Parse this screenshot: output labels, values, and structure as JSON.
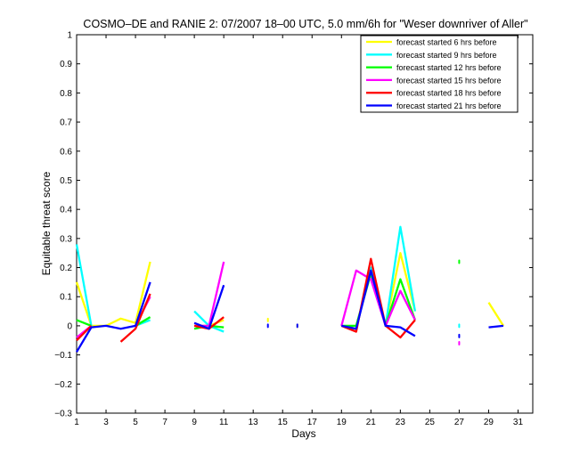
{
  "chart_data": {
    "type": "line",
    "title": "COSMO–DE and RANIE 2: 07/2007 18–00 UTC, 5.0 mm/6h for \"Weser downriver of Aller\"",
    "xlabel": "Days",
    "ylabel": "Equitable threat score",
    "xlim": [
      1,
      32
    ],
    "ylim": [
      -0.3,
      1
    ],
    "xticks": [
      1,
      3,
      5,
      7,
      9,
      11,
      13,
      15,
      17,
      19,
      21,
      23,
      25,
      27,
      29,
      31
    ],
    "yticks": [
      -0.3,
      -0.2,
      -0.1,
      0,
      0.1,
      0.2,
      0.3,
      0.4,
      0.5,
      0.6,
      0.7,
      0.8,
      0.9,
      1
    ],
    "ytick_labels": [
      "−0.3",
      "−0.2",
      "−0.1",
      "0",
      "0.1",
      "0.2",
      "0.3",
      "0.4",
      "0.5",
      "0.6",
      "0.7",
      "0.8",
      "0.9",
      "1"
    ],
    "grid": false,
    "legend_position": "top-right",
    "series": [
      {
        "name": "forecast started 6 hrs before",
        "color": "#ffff00",
        "segments": [
          [
            [
              1,
              0.15
            ],
            [
              2,
              0.0
            ],
            [
              3,
              0.0
            ],
            [
              4,
              0.025
            ],
            [
              5,
              0.01
            ],
            [
              6,
              0.22
            ]
          ],
          [
            [
              9,
              0.0
            ],
            [
              10,
              0.0
            ],
            [
              11,
              0.02
            ]
          ],
          [
            [
              14,
              0.02
            ]
          ],
          [
            [
              16,
              0.0
            ]
          ],
          [
            [
              19,
              0.0
            ],
            [
              20,
              -0.01
            ],
            [
              21,
              0.2
            ],
            [
              22,
              0.0
            ],
            [
              23,
              0.25
            ],
            [
              24,
              0.05
            ]
          ],
          [
            [
              29,
              0.08
            ],
            [
              30,
              0.0
            ]
          ]
        ]
      },
      {
        "name": "forecast started 9 hrs before",
        "color": "#00ffff",
        "segments": [
          [
            [
              1,
              0.28
            ],
            [
              2,
              0.0
            ]
          ],
          [
            [
              5,
              0.0
            ],
            [
              6,
              0.02
            ]
          ],
          [
            [
              9,
              0.05
            ],
            [
              10,
              0.0
            ],
            [
              11,
              -0.02
            ]
          ],
          [
            [
              19,
              0.0
            ],
            [
              20,
              -0.01
            ],
            [
              21,
              0.2
            ],
            [
              22,
              0.0
            ],
            [
              23,
              0.34
            ],
            [
              24,
              0.05
            ]
          ],
          [
            [
              27,
              0.0
            ]
          ]
        ]
      },
      {
        "name": "forecast started 12 hrs before",
        "color": "#00ff00",
        "segments": [
          [
            [
              1,
              0.02
            ],
            [
              2,
              0.0
            ]
          ],
          [
            [
              5,
              0.0
            ],
            [
              6,
              0.03
            ]
          ],
          [
            [
              9,
              -0.01
            ],
            [
              10,
              0.0
            ],
            [
              11,
              -0.005
            ]
          ],
          [
            [
              19,
              0.0
            ],
            [
              20,
              0.0
            ],
            [
              21,
              0.18
            ],
            [
              22,
              0.0
            ],
            [
              23,
              0.16
            ],
            [
              24,
              0.02
            ]
          ],
          [
            [
              27,
              0.22
            ]
          ]
        ]
      },
      {
        "name": "forecast started 15 hrs before",
        "color": "#ff00ff",
        "segments": [
          [
            [
              1,
              -0.04
            ],
            [
              2,
              0.0
            ]
          ],
          [
            [
              5,
              0.0
            ],
            [
              6,
              0.1
            ]
          ],
          [
            [
              9,
              0.0
            ],
            [
              10,
              0.0
            ],
            [
              11,
              0.22
            ]
          ],
          [
            [
              19,
              0.0
            ],
            [
              20,
              0.19
            ],
            [
              21,
              0.16
            ],
            [
              22,
              0.0
            ],
            [
              23,
              0.12
            ],
            [
              24,
              0.02
            ]
          ],
          [
            [
              27,
              -0.06
            ]
          ]
        ]
      },
      {
        "name": "forecast started 18 hrs before",
        "color": "#ff0000",
        "segments": [
          [
            [
              1,
              -0.05
            ],
            [
              2,
              0.0
            ]
          ],
          [
            [
              4,
              -0.055
            ],
            [
              5,
              -0.01
            ],
            [
              6,
              0.11
            ]
          ],
          [
            [
              9,
              0.0
            ],
            [
              10,
              -0.01
            ],
            [
              11,
              0.03
            ]
          ],
          [
            [
              19,
              0.0
            ],
            [
              20,
              -0.02
            ],
            [
              21,
              0.23
            ],
            [
              22,
              0.0
            ],
            [
              23,
              -0.04
            ],
            [
              24,
              0.02
            ]
          ]
        ]
      },
      {
        "name": "forecast started 21 hrs before",
        "color": "#0000ff",
        "segments": [
          [
            [
              1,
              -0.09
            ],
            [
              2,
              -0.005
            ],
            [
              3,
              0.0
            ],
            [
              4,
              -0.01
            ],
            [
              5,
              0.0
            ],
            [
              6,
              0.15
            ]
          ],
          [
            [
              9,
              0.01
            ],
            [
              10,
              -0.01
            ],
            [
              11,
              0.14
            ]
          ],
          [
            [
              14,
              0.0
            ]
          ],
          [
            [
              16,
              0.0
            ]
          ],
          [
            [
              19,
              0.0
            ],
            [
              20,
              -0.01
            ],
            [
              21,
              0.19
            ],
            [
              22,
              0.0
            ],
            [
              23,
              -0.005
            ],
            [
              24,
              -0.035
            ]
          ],
          [
            [
              27,
              -0.035
            ]
          ],
          [
            [
              29,
              -0.005
            ],
            [
              30,
              0.0
            ]
          ]
        ]
      }
    ]
  }
}
